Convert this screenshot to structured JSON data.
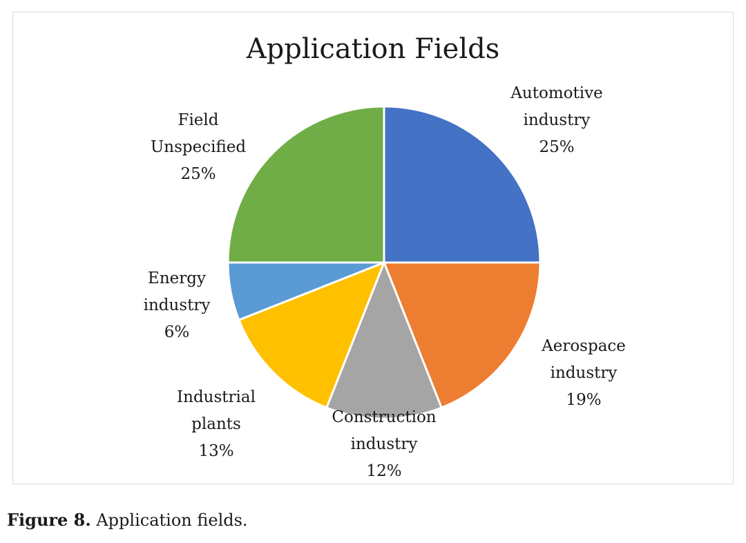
{
  "chart_data": {
    "type": "pie",
    "title": "Application Fields",
    "start": "12 o'clock, clockwise",
    "slices": [
      {
        "label_lines": [
          "Automotive",
          "industry"
        ],
        "pct_label": "25%",
        "value": 25,
        "color": "#4472C4"
      },
      {
        "label_lines": [
          "Aerospace",
          "industry"
        ],
        "pct_label": "19%",
        "value": 19,
        "color": "#ED7D31"
      },
      {
        "label_lines": [
          "Construction",
          "industry"
        ],
        "pct_label": "12%",
        "value": 12,
        "color": "#A5A5A5"
      },
      {
        "label_lines": [
          "Industrial",
          "plants"
        ],
        "pct_label": "13%",
        "value": 13,
        "color": "#FFC000"
      },
      {
        "label_lines": [
          "Energy",
          "industry"
        ],
        "pct_label": "6%",
        "value": 6,
        "color": "#5B9BD5"
      },
      {
        "label_lines": [
          "Field",
          "Unspecified"
        ],
        "pct_label": "25%",
        "value": 25,
        "color": "#70AD47"
      }
    ],
    "legend": "none"
  },
  "caption": {
    "label": "Figure 8.",
    "text": " Application fields."
  }
}
